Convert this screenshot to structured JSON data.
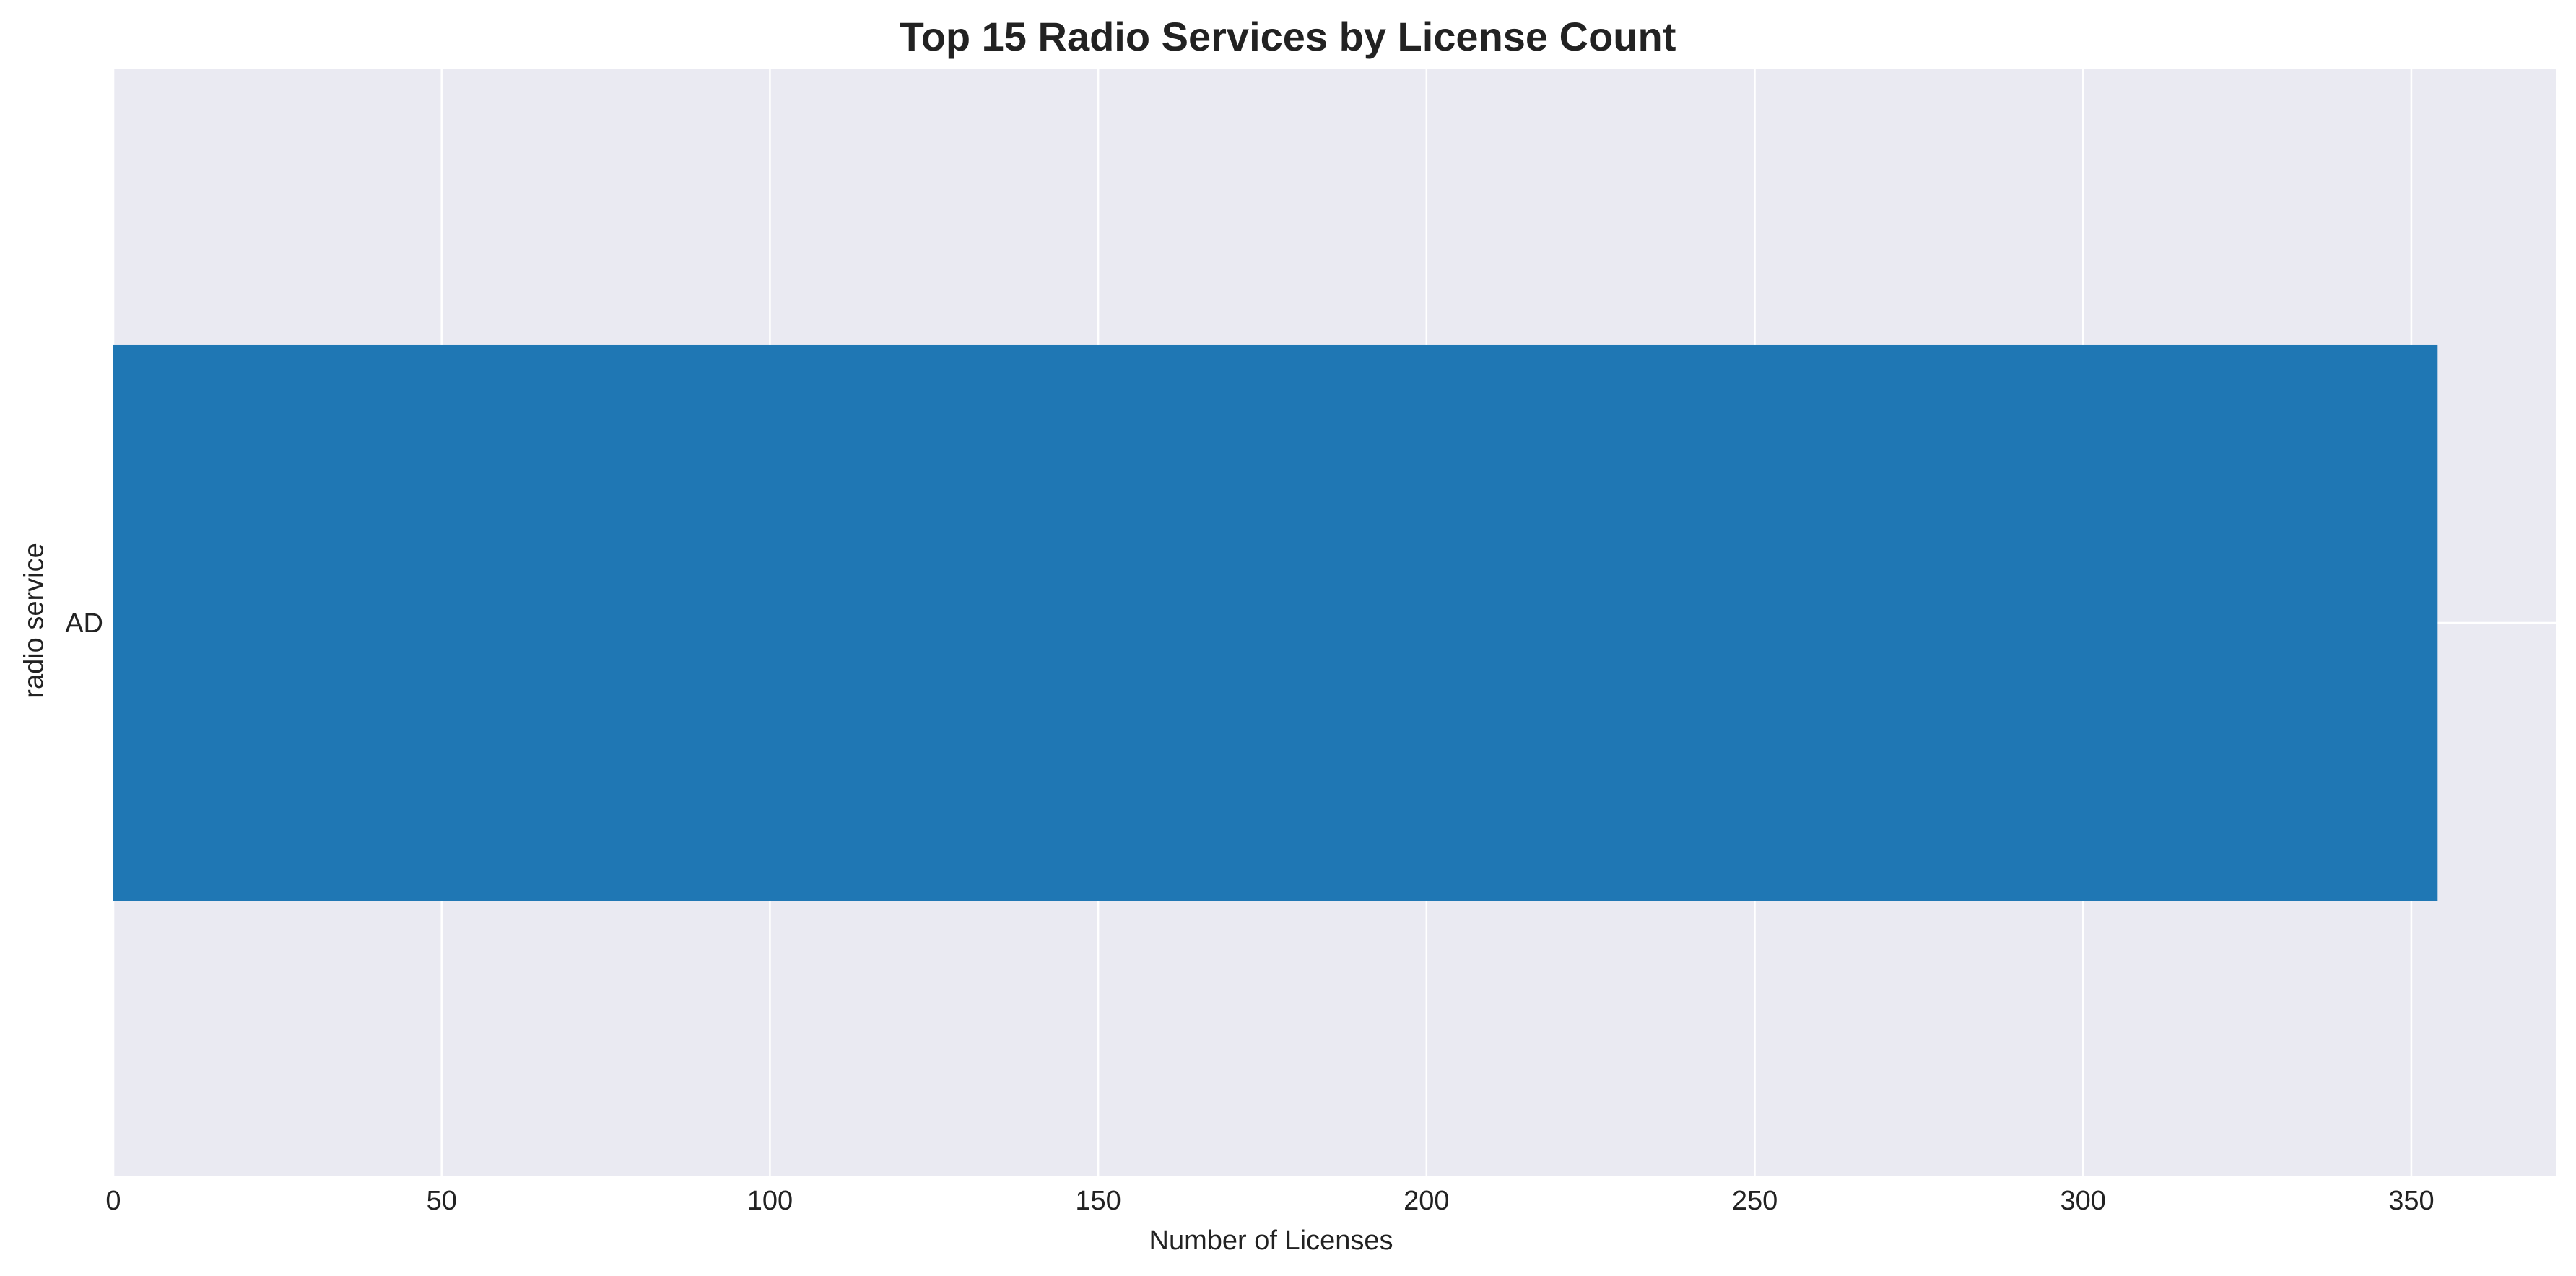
{
  "chart_data": {
    "type": "bar",
    "orientation": "horizontal",
    "title": "Top 15 Radio Services by License Count",
    "xlabel": "Number of Licenses",
    "ylabel": "radio service",
    "categories": [
      "AD"
    ],
    "values": [
      354
    ],
    "xlim": [
      0,
      372
    ],
    "xticks": [
      0,
      50,
      100,
      150,
      200,
      250,
      300,
      350
    ],
    "grid": true,
    "legend": "none",
    "colors": {
      "bar": "#1f77b4",
      "plot_background": "#eaeaf2",
      "grid": "#ffffff",
      "text": "#222222"
    }
  }
}
